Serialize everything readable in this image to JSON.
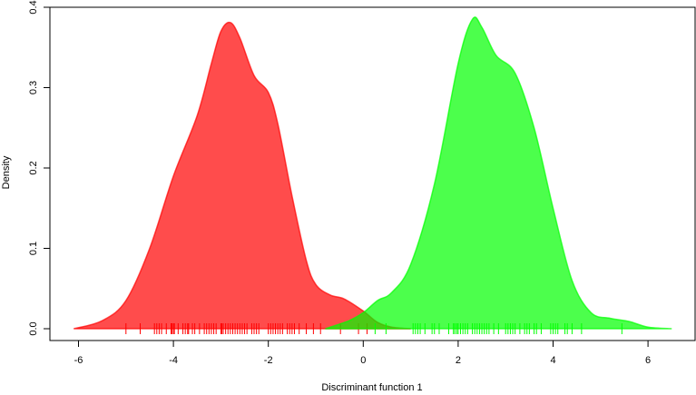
{
  "chart_data": {
    "type": "area",
    "title": "",
    "xlabel": "Discriminant function 1",
    "ylabel": "Density",
    "xlim": [
      -6.3,
      6.7
    ],
    "ylim": [
      0,
      0.4
    ],
    "xticks": [
      -6,
      -4,
      -2,
      0,
      2,
      4,
      6
    ],
    "xtick_labels": [
      "-6",
      "-4",
      "-2",
      "0",
      "2",
      "4",
      "6"
    ],
    "yticks": [
      0,
      0.1,
      0.2,
      0.3,
      0.4
    ],
    "ytick_labels": [
      "0.0",
      "0.1",
      "0.2",
      "0.3",
      "0.4"
    ],
    "grid": false,
    "series": [
      {
        "color": "#ff0000",
        "opacity": 0.7,
        "x": [
          -6.1,
          -5.5,
          -5.0,
          -4.5,
          -4.0,
          -3.5,
          -3.2,
          -3.0,
          -2.8,
          -2.6,
          -2.3,
          -2.0,
          -1.8,
          -1.5,
          -1.2,
          -1.0,
          -0.7,
          -0.4,
          0.0,
          0.3,
          0.6,
          1.0
        ],
        "y": [
          0.0,
          0.01,
          0.035,
          0.1,
          0.19,
          0.265,
          0.33,
          0.37,
          0.381,
          0.362,
          0.315,
          0.294,
          0.255,
          0.165,
          0.085,
          0.055,
          0.042,
          0.037,
          0.022,
          0.008,
          0.002,
          0.0
        ],
        "rug": [
          -5.0,
          -4.7,
          -4.4,
          -4.35,
          -4.3,
          -4.25,
          -4.15,
          -4.05,
          -4.03,
          -4.0,
          -3.98,
          -3.9,
          -3.8,
          -3.75,
          -3.7,
          -3.68,
          -3.6,
          -3.55,
          -3.45,
          -3.35,
          -3.3,
          -3.25,
          -3.2,
          -3.15,
          -3.1,
          -3.0,
          -2.98,
          -2.95,
          -2.9,
          -2.85,
          -2.8,
          -2.75,
          -2.7,
          -2.65,
          -2.6,
          -2.55,
          -2.5,
          -2.45,
          -2.35,
          -2.3,
          -2.25,
          -2.2,
          -2.0,
          -1.95,
          -1.9,
          -1.85,
          -1.8,
          -1.75,
          -1.7,
          -1.6,
          -1.55,
          -1.5,
          -1.45,
          -1.35,
          -1.2,
          -1.05,
          -0.9,
          -0.48,
          -0.1,
          0.08
        ]
      },
      {
        "color": "#00ff00",
        "opacity": 0.7,
        "x": [
          -0.8,
          -0.3,
          0.0,
          0.3,
          0.6,
          1.0,
          1.5,
          2.0,
          2.3,
          2.5,
          2.8,
          3.2,
          3.6,
          4.0,
          4.4,
          4.8,
          5.2,
          5.6,
          6.0,
          6.5
        ],
        "y": [
          0.0,
          0.01,
          0.02,
          0.035,
          0.045,
          0.08,
          0.18,
          0.33,
          0.385,
          0.375,
          0.34,
          0.318,
          0.25,
          0.15,
          0.06,
          0.02,
          0.013,
          0.009,
          0.002,
          0.0
        ],
        "rug": [
          0.25,
          0.48,
          1.05,
          1.1,
          1.15,
          1.2,
          1.3,
          1.45,
          1.5,
          1.6,
          1.8,
          1.9,
          1.93,
          1.97,
          2.0,
          2.05,
          2.1,
          2.15,
          2.2,
          2.3,
          2.35,
          2.4,
          2.45,
          2.5,
          2.55,
          2.6,
          2.65,
          2.75,
          2.85,
          3.0,
          3.05,
          3.1,
          3.15,
          3.2,
          3.3,
          3.4,
          3.45,
          3.5,
          3.6,
          3.65,
          3.75,
          3.95,
          4.0,
          4.05,
          4.1,
          4.25,
          4.3,
          4.4,
          4.6,
          5.45
        ]
      }
    ]
  }
}
